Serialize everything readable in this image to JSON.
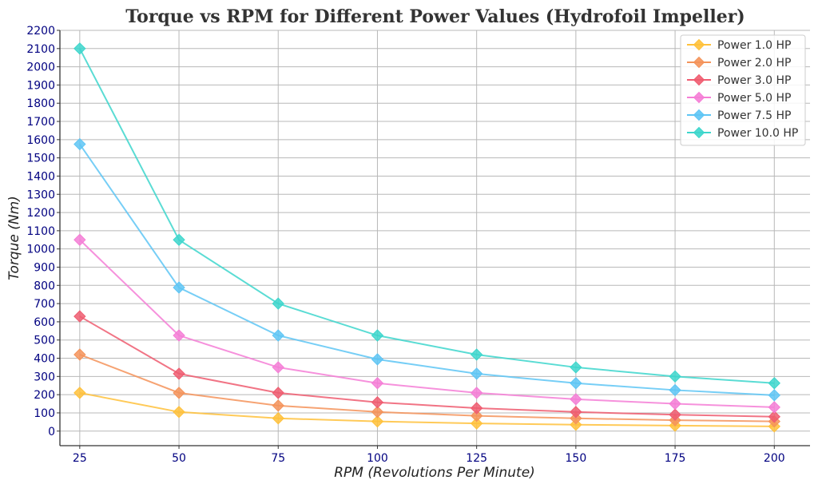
{
  "chart_data": {
    "type": "line",
    "title": "Torque vs RPM for Different Power Values (Hydrofoil Impeller)",
    "xlabel": "RPM (Revolutions Per Minute)",
    "ylabel": "Torque (Nm)",
    "x": [
      25,
      50,
      75,
      100,
      125,
      150,
      175,
      200
    ],
    "xticks": [
      25,
      50,
      75,
      100,
      125,
      150,
      175,
      200
    ],
    "xlim": [
      20,
      209
    ],
    "ylim": [
      -80,
      2200
    ],
    "yticks": [
      0,
      100,
      200,
      300,
      400,
      500,
      600,
      700,
      800,
      900,
      1000,
      1100,
      1200,
      1300,
      1400,
      1500,
      1600,
      1700,
      1800,
      1900,
      2000,
      2100,
      2200
    ],
    "grid": true,
    "legend_position": "top-right",
    "series": [
      {
        "name": "Power 1.0 HP",
        "color": "#ffc13b",
        "values": [
          210,
          105,
          70,
          53,
          42,
          35,
          30,
          26
        ]
      },
      {
        "name": "Power 2.0 HP",
        "color": "#f4935a",
        "values": [
          420,
          210,
          140,
          105,
          84,
          70,
          60,
          53
        ]
      },
      {
        "name": "Power 3.0 HP",
        "color": "#ef5c70",
        "values": [
          630,
          315,
          210,
          158,
          126,
          105,
          90,
          79
        ]
      },
      {
        "name": "Power 5.0 HP",
        "color": "#f57ed6",
        "values": [
          1050,
          525,
          350,
          263,
          210,
          175,
          150,
          131
        ]
      },
      {
        "name": "Power 7.5 HP",
        "color": "#5ec5f5",
        "values": [
          1575,
          788,
          525,
          394,
          315,
          263,
          225,
          197
        ]
      },
      {
        "name": "Power 10.0 HP",
        "color": "#3dd6cc",
        "values": [
          2100,
          1050,
          700,
          525,
          420,
          350,
          300,
          263
        ]
      }
    ]
  }
}
